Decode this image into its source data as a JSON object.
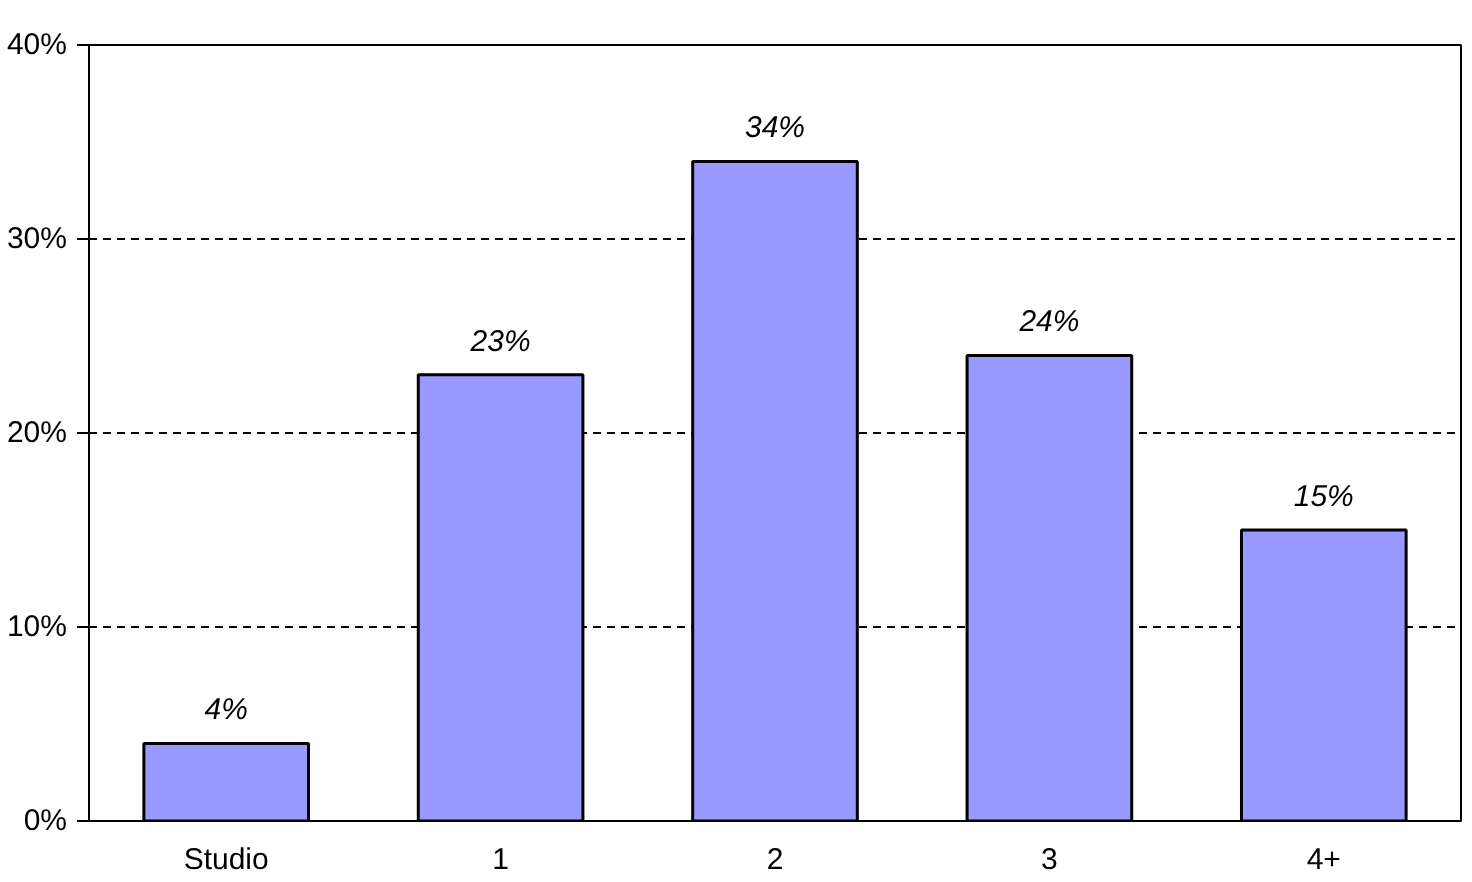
{
  "chart_data": {
    "type": "bar",
    "categories": [
      "Studio",
      "1",
      "2",
      "3",
      "4+"
    ],
    "values": [
      4,
      23,
      34,
      24,
      15
    ],
    "value_labels": [
      "4%",
      "23%",
      "34%",
      "24%",
      "15%"
    ],
    "color": "#9999ff",
    "ylim": [
      0,
      40
    ],
    "yticks": [
      {
        "value": 0,
        "label": "0%"
      },
      {
        "value": 10,
        "label": "10%"
      },
      {
        "value": 20,
        "label": "20%"
      },
      {
        "value": 30,
        "label": "30%"
      },
      {
        "value": 40,
        "label": "40%"
      }
    ],
    "grid": "y"
  }
}
